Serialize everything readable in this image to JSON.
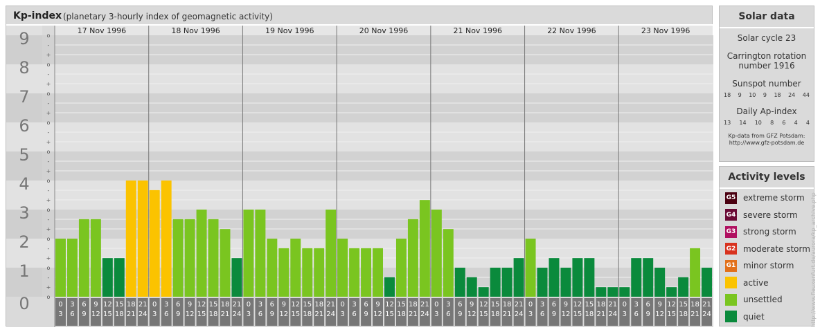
{
  "header": {
    "title": "Kp-index",
    "subtitle": "(planetary 3-hourly index of geomagnetic activity)"
  },
  "chart_data": {
    "type": "bar",
    "title": "Kp-index",
    "subtitle": "(planetary 3-hourly index of geomagnetic activity)",
    "ylim": [
      0,
      9
    ],
    "y_ticks": [
      "0",
      "1",
      "2",
      "3",
      "4",
      "5",
      "6",
      "7",
      "8",
      "9"
    ],
    "y_minor_ticks": [
      "+",
      "o",
      "-"
    ],
    "days": [
      "17 Nov 1996",
      "18 Nov 1996",
      "19 Nov 1996",
      "20 Nov 1996",
      "21 Nov 1996",
      "22 Nov 1996",
      "23 Nov 1996"
    ],
    "slot_labels": [
      {
        "start": "0",
        "end": "3"
      },
      {
        "start": "3",
        "end": "6"
      },
      {
        "start": "6",
        "end": "9"
      },
      {
        "start": "9",
        "end": "12"
      },
      {
        "start": "12",
        "end": "15"
      },
      {
        "start": "15",
        "end": "18"
      },
      {
        "start": "18",
        "end": "21"
      },
      {
        "start": "21",
        "end": "24"
      }
    ],
    "values": [
      [
        2.0,
        2.0,
        2.67,
        2.67,
        1.33,
        1.33,
        4.0,
        4.0
      ],
      [
        3.67,
        4.0,
        2.67,
        2.67,
        3.0,
        2.67,
        2.33,
        1.33
      ],
      [
        3.0,
        3.0,
        2.0,
        1.67,
        2.0,
        1.67,
        1.67,
        3.0
      ],
      [
        2.0,
        1.67,
        1.67,
        1.67,
        0.67,
        2.0,
        2.67,
        3.33
      ],
      [
        3.0,
        2.33,
        1.0,
        0.67,
        0.33,
        1.0,
        1.0,
        1.33
      ],
      [
        2.0,
        1.0,
        1.33,
        1.0,
        1.33,
        1.33,
        0.33,
        0.33
      ],
      [
        0.33,
        1.33,
        1.33,
        1.0,
        0.33,
        0.67,
        1.67,
        1.0
      ]
    ],
    "level_colors": {
      "quiet": "#0a8a3c",
      "unsettled": "#7ac520",
      "active": "#fbc300"
    }
  },
  "solar": {
    "title": "Solar data",
    "cycle": "Solar cycle 23",
    "carrington_line1": "Carrington rotation",
    "carrington_line2": "number 1916",
    "sunspot_title": "Sunspot number",
    "sunspot_values": [
      "18",
      "9",
      "10",
      "9",
      "18",
      "24",
      "44"
    ],
    "ap_title": "Daily Ap-index",
    "ap_values": [
      "13",
      "14",
      "10",
      "8",
      "6",
      "4",
      "4"
    ],
    "credit_line1": "Kp-data from GFZ Potsdam:",
    "credit_line2": "http://www.gfz-potsdam.de"
  },
  "activity": {
    "title": "Activity levels",
    "items": [
      {
        "badge": "G5",
        "label": "extreme storm",
        "color": "#4a0010"
      },
      {
        "badge": "G4",
        "label": "severe storm",
        "color": "#6a0a35"
      },
      {
        "badge": "G3",
        "label": "strong storm",
        "color": "#b01060"
      },
      {
        "badge": "G2",
        "label": "moderate storm",
        "color": "#d8321e"
      },
      {
        "badge": "G1",
        "label": "minor storm",
        "color": "#e2701a"
      },
      {
        "badge": "",
        "label": "active",
        "color": "#fbc300"
      },
      {
        "badge": "",
        "label": "unsettled",
        "color": "#7ac520"
      },
      {
        "badge": "",
        "label": "quiet",
        "color": "#0a8a3c"
      }
    ]
  },
  "watermark": "http://www.fleuxenfurt.de/aurora/kp_archive.php"
}
